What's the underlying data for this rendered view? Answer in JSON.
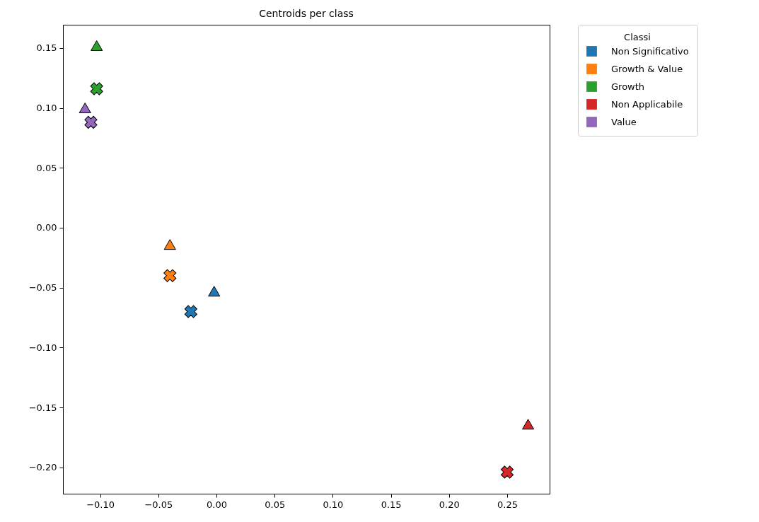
{
  "chart_data": {
    "type": "scatter",
    "title": "Centroids per class",
    "legend_title": "Classi",
    "legend": "top right",
    "grid": false,
    "xlim": [
      -0.132,
      0.2865
    ],
    "ylim": [
      -0.222,
      0.1694
    ],
    "xticks": [
      {
        "value": -0.1,
        "label": "−0.10"
      },
      {
        "value": -0.05,
        "label": "−0.05"
      },
      {
        "value": 0,
        "label": "0.00"
      },
      {
        "value": 0.05,
        "label": "0.05"
      },
      {
        "value": 0.1,
        "label": "0.10"
      },
      {
        "value": 0.15,
        "label": "0.15"
      },
      {
        "value": 0.2,
        "label": "0.20"
      },
      {
        "value": 0.25,
        "label": "0.25"
      }
    ],
    "yticks": [
      {
        "value": -0.2,
        "label": "−0.20"
      },
      {
        "value": -0.15,
        "label": "−0.15"
      },
      {
        "value": -0.1,
        "label": "−0.10"
      },
      {
        "value": -0.05,
        "label": "−0.05"
      },
      {
        "value": 0,
        "label": "0.00"
      },
      {
        "value": 0.05,
        "label": "0.05"
      },
      {
        "value": 0.1,
        "label": "0.10"
      },
      {
        "value": 0.15,
        "label": "0.15"
      }
    ],
    "series": [
      {
        "name": "Non Significativo",
        "color": "#1f77b4",
        "marker": "triangle",
        "x": [
          -0.002
        ],
        "values": [
          -0.053
        ]
      },
      {
        "name": "Growth & Value",
        "color": "#ff7f0e",
        "marker": "triangle",
        "x": [
          -0.04
        ],
        "values": [
          -0.014
        ]
      },
      {
        "name": "Growth",
        "color": "#2ca02c",
        "marker": "triangle",
        "x": [
          -0.103
        ],
        "values": [
          0.152
        ]
      },
      {
        "name": "Non Applicabile",
        "color": "#d62728",
        "marker": "triangle",
        "x": [
          0.268
        ],
        "values": [
          -0.164
        ]
      },
      {
        "name": "Value",
        "color": "#9467bd",
        "marker": "triangle",
        "x": [
          -0.113
        ],
        "values": [
          0.1
        ]
      },
      {
        "color": "#1f77b4",
        "marker": "cross",
        "x": [
          -0.022
        ],
        "values": [
          -0.07
        ]
      },
      {
        "color": "#ff7f0e",
        "marker": "cross",
        "x": [
          -0.04
        ],
        "values": [
          -0.04
        ]
      },
      {
        "color": "#2ca02c",
        "marker": "cross",
        "x": [
          -0.103
        ],
        "values": [
          0.116
        ]
      },
      {
        "color": "#d62728",
        "marker": "cross",
        "x": [
          0.25
        ],
        "values": [
          -0.204
        ]
      },
      {
        "color": "#9467bd",
        "marker": "cross",
        "x": [
          -0.108
        ],
        "values": [
          0.088
        ]
      }
    ]
  }
}
